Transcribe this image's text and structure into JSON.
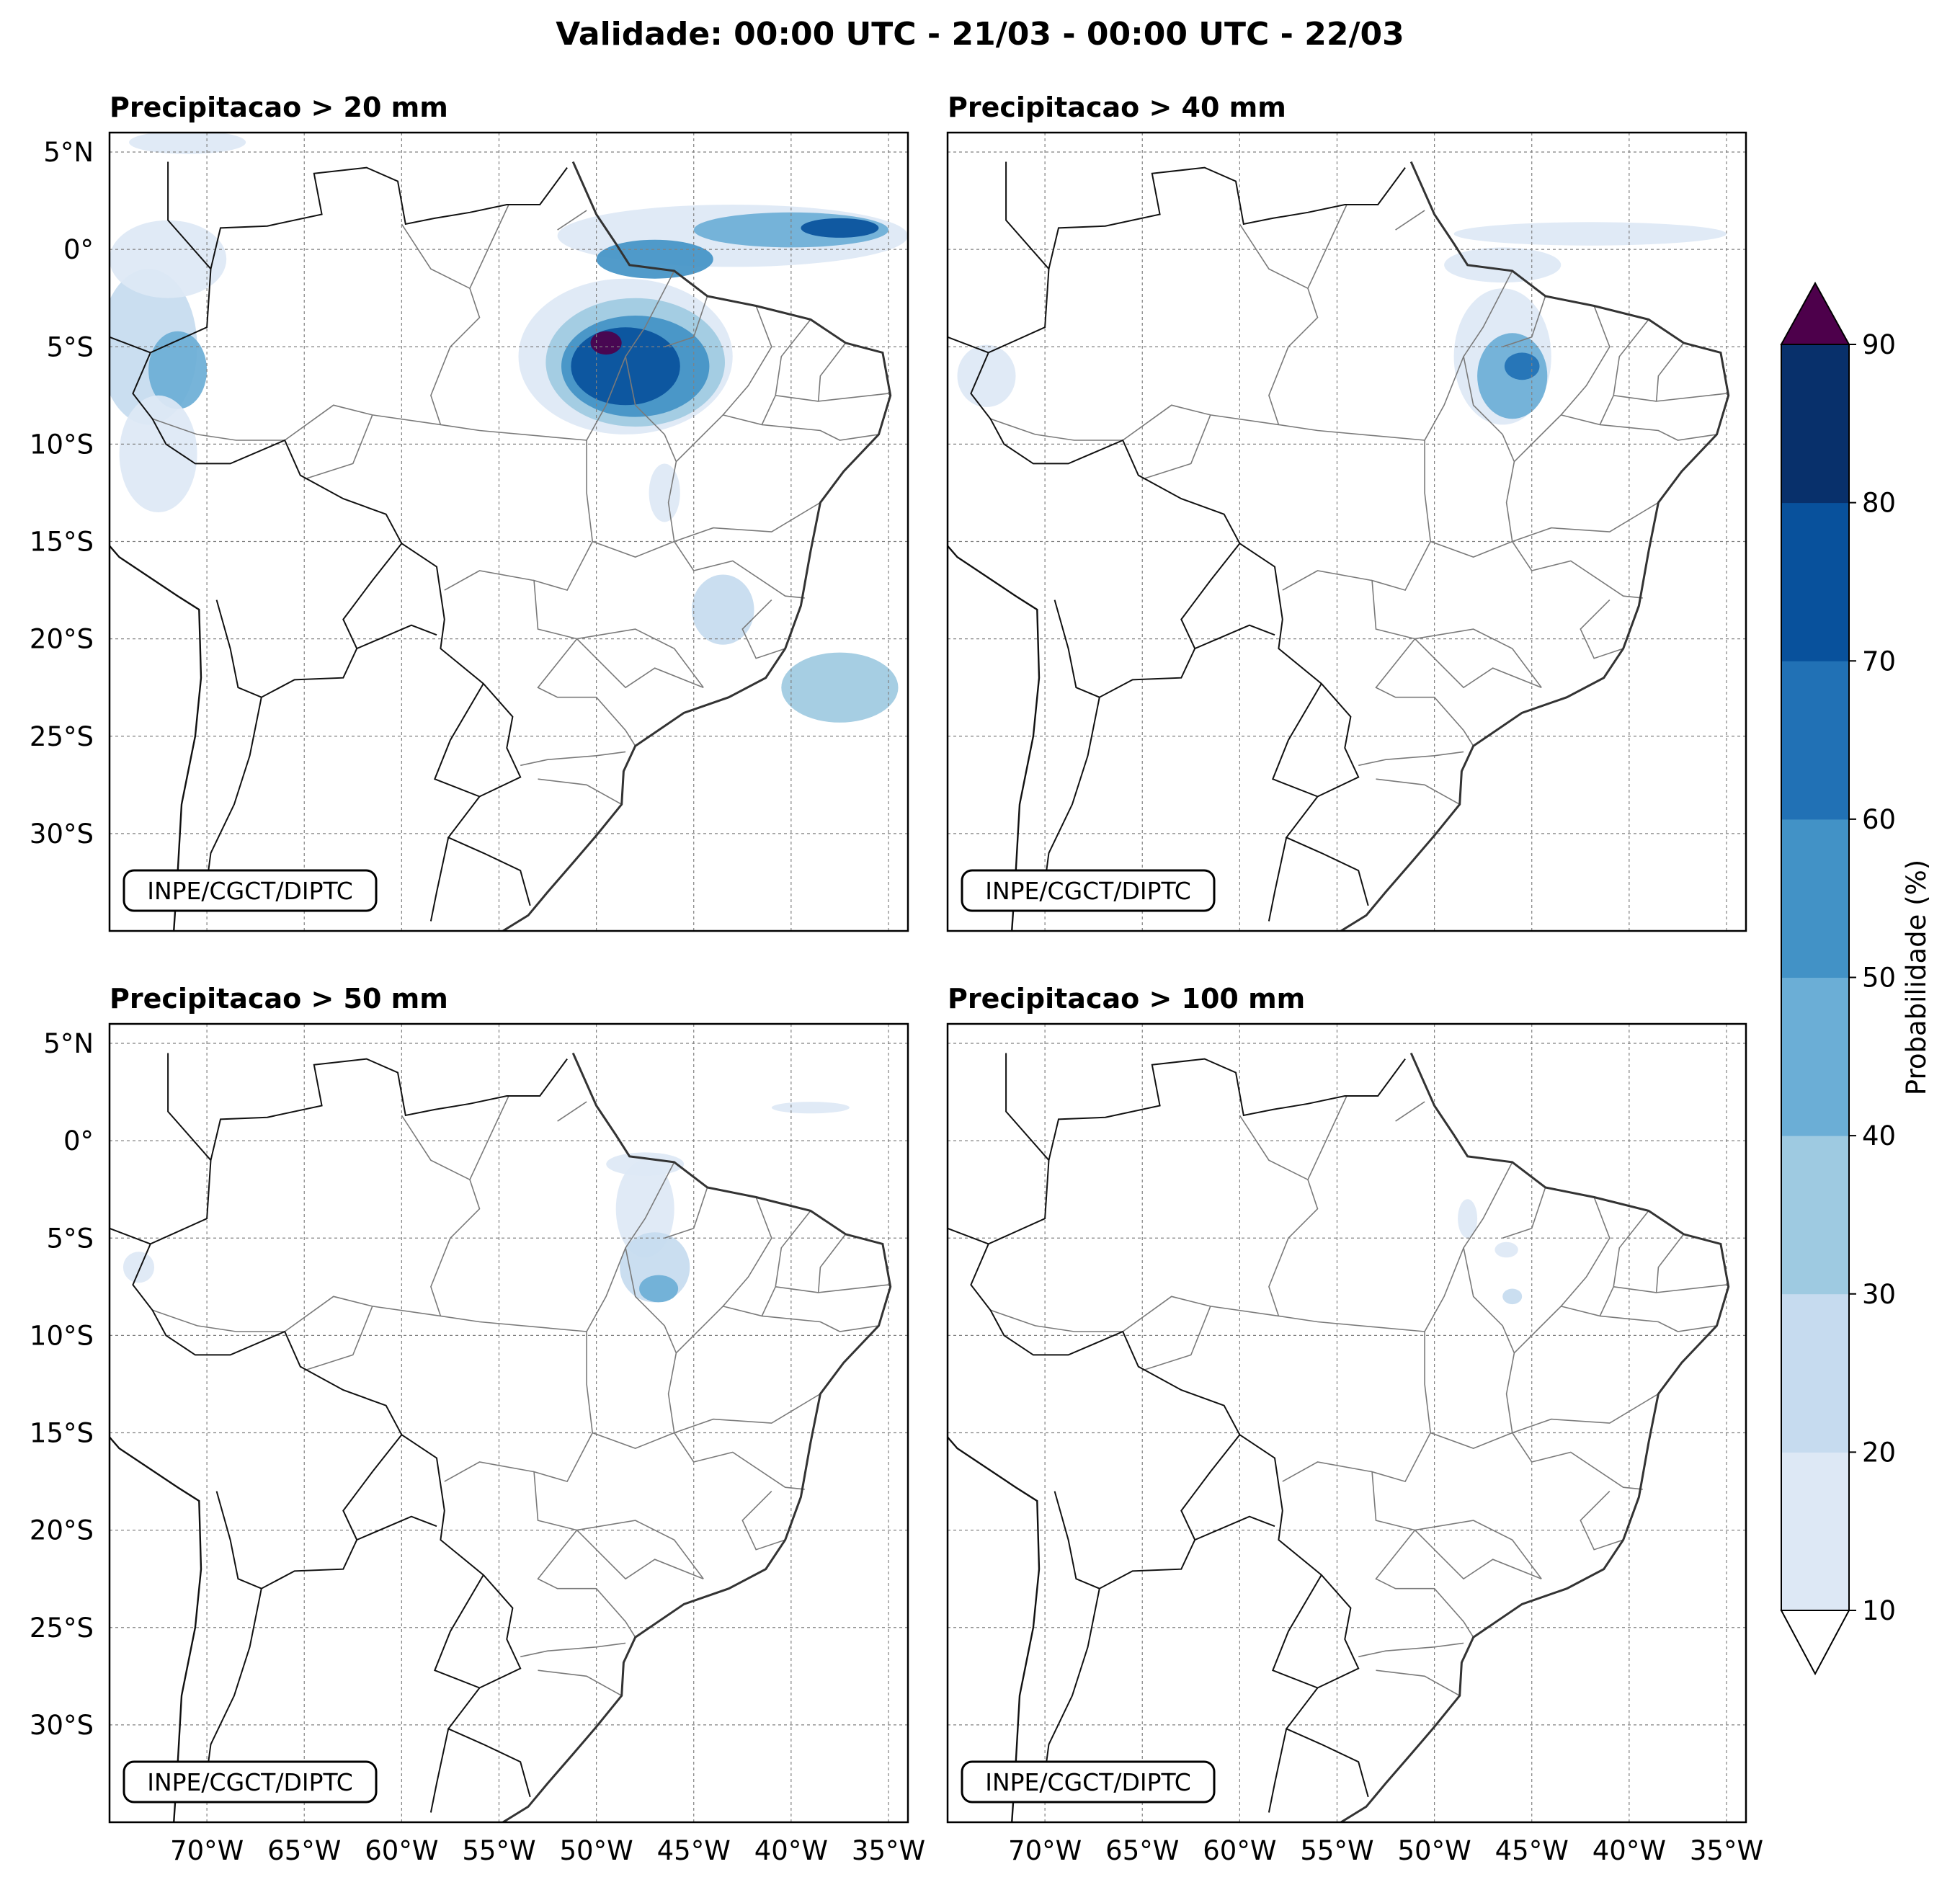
{
  "figure": {
    "title": "Validade: 00:00 UTC - 21/03 - 00:00 UTC - 22/03"
  },
  "panels": [
    {
      "title": "Precipitacao > 20 mm",
      "credit": "INPE/CGCT/DIPTC"
    },
    {
      "title": "Precipitacao > 40 mm",
      "credit": "INPE/CGCT/DIPTC"
    },
    {
      "title": "Precipitacao > 50 mm",
      "credit": "INPE/CGCT/DIPTC"
    },
    {
      "title": "Precipitacao > 100 mm",
      "credit": "INPE/CGCT/DIPTC"
    }
  ],
  "axes": {
    "lat_ticks": [
      {
        "value": 5,
        "label": "5°N"
      },
      {
        "value": 0,
        "label": "0°"
      },
      {
        "value": -5,
        "label": "5°S"
      },
      {
        "value": -10,
        "label": "10°S"
      },
      {
        "value": -15,
        "label": "15°S"
      },
      {
        "value": -20,
        "label": "20°S"
      },
      {
        "value": -25,
        "label": "25°S"
      },
      {
        "value": -30,
        "label": "30°S"
      }
    ],
    "lon_ticks": [
      {
        "value": -70,
        "label": "70°W"
      },
      {
        "value": -65,
        "label": "65°W"
      },
      {
        "value": -60,
        "label": "60°W"
      },
      {
        "value": -55,
        "label": "55°W"
      },
      {
        "value": -50,
        "label": "50°W"
      },
      {
        "value": -45,
        "label": "45°W"
      },
      {
        "value": -40,
        "label": "40°W"
      },
      {
        "value": -35,
        "label": "35°W"
      }
    ],
    "lon_range": [
      -75,
      -34
    ],
    "lat_range": [
      -35,
      6
    ]
  },
  "colorbar": {
    "label": "Probabilidade (%)",
    "levels": [
      10,
      20,
      30,
      40,
      50,
      60,
      70,
      80,
      90
    ],
    "colors": [
      "#dde8f5",
      "#c6dbef",
      "#9ecae1",
      "#6baed6",
      "#4292c6",
      "#2171b5",
      "#08519c",
      "#08306b"
    ],
    "over_color": "#4d004b",
    "under_color": "#ffffff"
  },
  "probability_areas": [
    [
      {
        "lon": -48.5,
        "lat": -5.5,
        "rx": 5.5,
        "ry": 4.0,
        "level": 0
      },
      {
        "lon": -48.0,
        "lat": -5.8,
        "rx": 4.6,
        "ry": 3.3,
        "level": 2
      },
      {
        "lon": -48.0,
        "lat": -6.0,
        "rx": 3.8,
        "ry": 2.6,
        "level": 4
      },
      {
        "lon": -48.5,
        "lat": -6.0,
        "rx": 2.8,
        "ry": 2.0,
        "level": 6
      },
      {
        "lon": -49.5,
        "lat": -4.8,
        "rx": 0.8,
        "ry": 0.6,
        "level": 8
      },
      {
        "lon": -43.0,
        "lat": 0.7,
        "rx": 9.0,
        "ry": 1.6,
        "level": 0
      },
      {
        "lon": -40.0,
        "lat": 1.0,
        "rx": 5.0,
        "ry": 0.9,
        "level": 3
      },
      {
        "lon": -37.5,
        "lat": 1.1,
        "rx": 2.0,
        "ry": 0.5,
        "level": 6
      },
      {
        "lon": -47.0,
        "lat": -0.5,
        "rx": 3.0,
        "ry": 1.0,
        "level": 4
      },
      {
        "lon": -73.0,
        "lat": -5.0,
        "rx": 2.5,
        "ry": 4.0,
        "level": 1
      },
      {
        "lon": -71.5,
        "lat": -6.2,
        "rx": 1.5,
        "ry": 2.0,
        "level": 3
      },
      {
        "lon": -72.0,
        "lat": -0.5,
        "rx": 3.0,
        "ry": 2.0,
        "level": 0
      },
      {
        "lon": -72.5,
        "lat": -10.5,
        "rx": 2.0,
        "ry": 3.0,
        "level": 0
      },
      {
        "lon": -43.5,
        "lat": -18.5,
        "rx": 1.6,
        "ry": 1.8,
        "level": 1
      },
      {
        "lon": -37.5,
        "lat": -22.5,
        "rx": 3.0,
        "ry": 1.8,
        "level": 2
      },
      {
        "lon": -46.5,
        "lat": -12.5,
        "rx": 0.8,
        "ry": 1.5,
        "level": 0
      },
      {
        "lon": -71.0,
        "lat": 5.5,
        "rx": 3.0,
        "ry": 0.6,
        "level": 0
      }
    ],
    [
      {
        "lon": -46.5,
        "lat": -5.5,
        "rx": 2.5,
        "ry": 3.5,
        "level": 0
      },
      {
        "lon": -46.0,
        "lat": -6.5,
        "rx": 1.8,
        "ry": 2.2,
        "level": 3
      },
      {
        "lon": -45.5,
        "lat": -6.0,
        "rx": 0.9,
        "ry": 0.7,
        "level": 5
      },
      {
        "lon": -46.5,
        "lat": -0.8,
        "rx": 3.0,
        "ry": 0.9,
        "level": 0
      },
      {
        "lon": -42.0,
        "lat": 0.8,
        "rx": 7.0,
        "ry": 0.6,
        "level": 0
      },
      {
        "lon": -73.0,
        "lat": -6.5,
        "rx": 1.5,
        "ry": 1.6,
        "level": 0
      }
    ],
    [
      {
        "lon": -47.5,
        "lat": -3.5,
        "rx": 1.5,
        "ry": 2.5,
        "level": 0
      },
      {
        "lon": -47.0,
        "lat": -6.5,
        "rx": 1.8,
        "ry": 1.8,
        "level": 1
      },
      {
        "lon": -46.8,
        "lat": -7.6,
        "rx": 1.0,
        "ry": 0.7,
        "level": 3
      },
      {
        "lon": -47.5,
        "lat": -1.2,
        "rx": 2.0,
        "ry": 0.6,
        "level": 0
      },
      {
        "lon": -73.5,
        "lat": -6.5,
        "rx": 0.8,
        "ry": 0.8,
        "level": 0
      },
      {
        "lon": -39.0,
        "lat": 1.7,
        "rx": 2.0,
        "ry": 0.3,
        "level": 0
      }
    ],
    [
      {
        "lon": -48.3,
        "lat": -4.0,
        "rx": 0.5,
        "ry": 1.0,
        "level": 0
      },
      {
        "lon": -46.3,
        "lat": -5.6,
        "rx": 0.6,
        "ry": 0.4,
        "level": 0
      },
      {
        "lon": -46.0,
        "lat": -8.0,
        "rx": 0.5,
        "ry": 0.4,
        "level": 1
      }
    ]
  ]
}
